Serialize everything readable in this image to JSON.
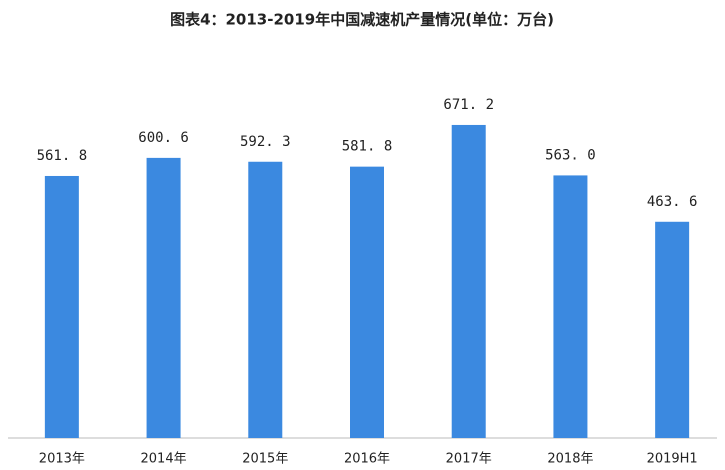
{
  "chart_data": {
    "type": "bar",
    "title": "图表4：2013-2019年中国减速机产量情况(单位：万台)",
    "categories": [
      "2013年",
      "2014年",
      "2015年",
      "2016年",
      "2017年",
      "2018年",
      "2019H1"
    ],
    "values": [
      561.8,
      600.6,
      592.3,
      581.8,
      671.2,
      563.0,
      463.6
    ],
    "value_labels": [
      "561. 8",
      "600. 6",
      "592. 3",
      "581. 8",
      "671. 2",
      "563. 0",
      "463. 6"
    ],
    "color": "#3b89e0"
  }
}
